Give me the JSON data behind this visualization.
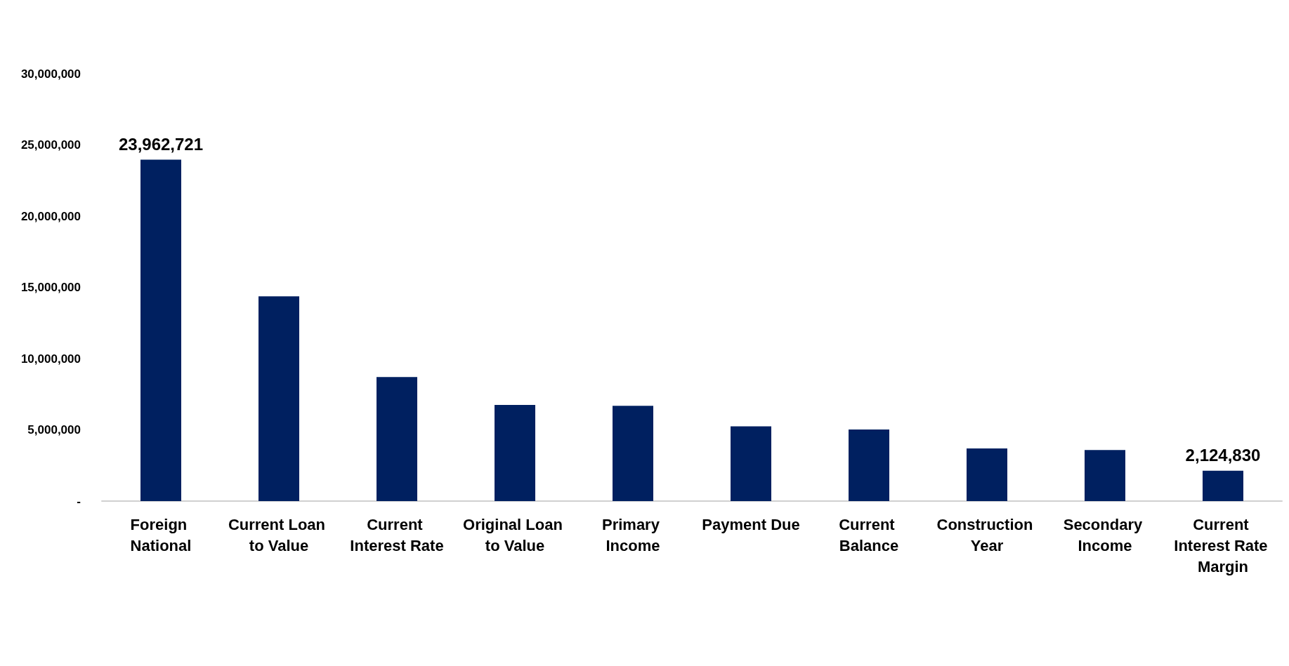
{
  "chart_data": {
    "type": "bar",
    "categories": [
      "Foreign National",
      "Current Loan to Value",
      "Current Interest Rate",
      "Original Loan to Value",
      "Primary Income",
      "Payment Due",
      "Current Balance",
      "Construction Year",
      "Secondary Income",
      "Current Interest Rate Margin"
    ],
    "values": [
      23962721,
      14370000,
      8710000,
      6750000,
      6690000,
      5250000,
      5020000,
      3690000,
      3580000,
      2124830
    ],
    "value_labels": [
      "23,962,721",
      null,
      null,
      null,
      null,
      null,
      null,
      null,
      null,
      "2,124,830"
    ],
    "color": "#002060",
    "ylim": [
      0,
      30000000
    ],
    "yticks": [
      {
        "value": 0,
        "label": "-"
      },
      {
        "value": 5000000,
        "label": "5,000,000"
      },
      {
        "value": 10000000,
        "label": "10,000,000"
      },
      {
        "value": 15000000,
        "label": "15,000,000"
      },
      {
        "value": 20000000,
        "label": "20,000,000"
      },
      {
        "value": 25000000,
        "label": "25,000,000"
      },
      {
        "value": 30000000,
        "label": "30,000,000"
      }
    ],
    "grid": false
  }
}
